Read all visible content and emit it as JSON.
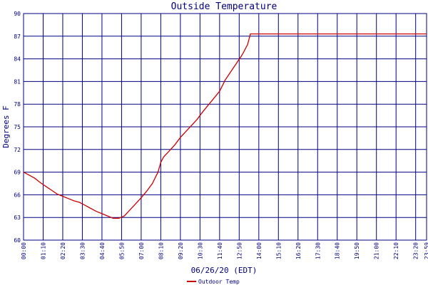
{
  "chart_data": {
    "type": "line",
    "title": "Outside Temperature",
    "xlabel": "06/26/20 (EDT)",
    "ylabel": "Degrees F",
    "ylim": [
      60,
      90
    ],
    "yticks": [
      60,
      63,
      66,
      69,
      72,
      75,
      78,
      81,
      84,
      87,
      90
    ],
    "x_tick_labels": [
      "00:00",
      "01:10",
      "02:20",
      "03:30",
      "04:40",
      "05:50",
      "07:00",
      "08:10",
      "09:20",
      "10:30",
      "11:40",
      "12:50",
      "14:00",
      "15:10",
      "16:20",
      "17:30",
      "18:40",
      "19:50",
      "21:00",
      "22:10",
      "23:20",
      "23:59"
    ],
    "grid": true,
    "legend_position": "bottom-left",
    "colors": {
      "background": "#ffffff",
      "grid": "#000080",
      "series": "#cc0000",
      "text": "#000080"
    },
    "series": [
      {
        "name": "Outdoor Temp",
        "x": [
          "00:00",
          "00:20",
          "00:40",
          "01:00",
          "01:20",
          "01:40",
          "02:00",
          "02:20",
          "02:40",
          "03:00",
          "03:20",
          "03:40",
          "04:00",
          "04:20",
          "04:40",
          "05:00",
          "05:20",
          "05:40",
          "06:00",
          "06:20",
          "06:40",
          "07:00",
          "07:20",
          "07:40",
          "08:00",
          "08:10",
          "08:20",
          "08:40",
          "09:00",
          "09:20",
          "09:40",
          "10:00",
          "10:20",
          "10:40",
          "11:00",
          "11:20",
          "11:40",
          "12:00",
          "12:20",
          "12:40",
          "13:00",
          "13:20",
          "13:30",
          "13:40",
          "14:00",
          "16:00",
          "18:00",
          "20:00",
          "22:00",
          "23:59"
        ],
        "y": [
          69.0,
          68.6,
          68.2,
          67.6,
          67.1,
          66.6,
          66.1,
          65.8,
          65.5,
          65.2,
          65.0,
          64.6,
          64.2,
          63.8,
          63.5,
          63.2,
          62.9,
          62.9,
          63.2,
          64.0,
          64.8,
          65.6,
          66.5,
          67.5,
          69.0,
          70.3,
          71.0,
          71.8,
          72.6,
          73.6,
          74.4,
          75.2,
          76.0,
          77.0,
          77.9,
          78.8,
          79.7,
          81.2,
          82.3,
          83.4,
          84.5,
          85.9,
          87.3,
          87.3,
          87.3,
          87.3,
          87.3,
          87.3,
          87.3,
          87.3
        ]
      }
    ]
  }
}
